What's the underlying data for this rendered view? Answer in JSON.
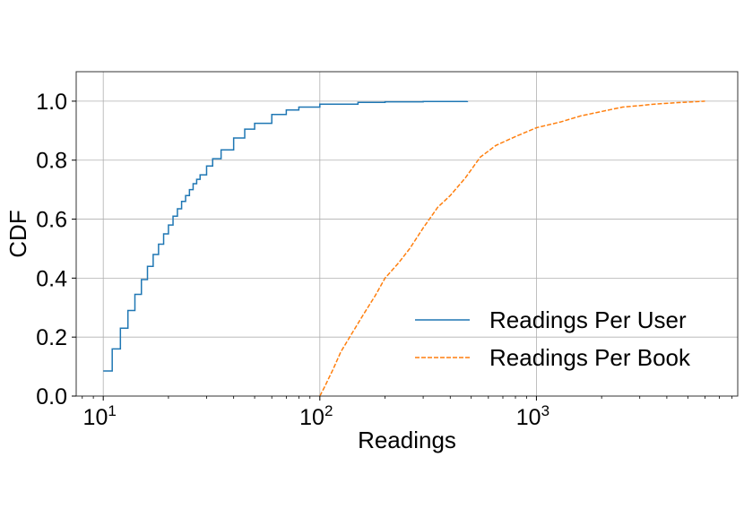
{
  "chart_data": {
    "type": "line",
    "title": "",
    "xlabel": "Readings",
    "ylabel": "CDF",
    "xscale": "log",
    "xlim": [
      7.5,
      8500
    ],
    "ylim": [
      0.0,
      1.1
    ],
    "x_ticks": [
      {
        "value": 10,
        "base": "10",
        "exp": "1"
      },
      {
        "value": 100,
        "base": "10",
        "exp": "2"
      },
      {
        "value": 1000,
        "base": "10",
        "exp": "3"
      }
    ],
    "y_ticks": [
      {
        "value": 0.0,
        "label": "0.0"
      },
      {
        "value": 0.2,
        "label": "0.2"
      },
      {
        "value": 0.4,
        "label": "0.4"
      },
      {
        "value": 0.6,
        "label": "0.6"
      },
      {
        "value": 0.8,
        "label": "0.8"
      },
      {
        "value": 1.0,
        "label": "1.0"
      }
    ],
    "grid": true,
    "legend_position": "bottom-right",
    "series": [
      {
        "name": "Readings Per User",
        "color": "#1f77b4",
        "style": "solid",
        "step": true,
        "x": [
          10,
          11,
          12,
          13,
          14,
          15,
          16,
          17,
          18,
          19,
          20,
          21,
          22,
          23,
          24,
          25,
          26,
          27,
          28,
          30,
          32,
          35,
          40,
          45,
          50,
          60,
          70,
          80,
          100,
          150,
          200,
          300,
          480
        ],
        "y": [
          0.085,
          0.16,
          0.23,
          0.29,
          0.345,
          0.395,
          0.44,
          0.48,
          0.515,
          0.55,
          0.58,
          0.61,
          0.635,
          0.66,
          0.68,
          0.7,
          0.72,
          0.735,
          0.75,
          0.78,
          0.805,
          0.835,
          0.875,
          0.905,
          0.925,
          0.955,
          0.97,
          0.98,
          0.99,
          0.996,
          0.998,
          0.999,
          1.0
        ]
      },
      {
        "name": "Readings Per Book",
        "color": "#ff7f0e",
        "style": "dashed",
        "step": false,
        "x": [
          100,
          105,
          115,
          125,
          140,
          160,
          180,
          200,
          230,
          260,
          300,
          350,
          400,
          470,
          550,
          650,
          800,
          1000,
          1300,
          1600,
          2000,
          2500,
          3000,
          3500,
          4500,
          6000
        ],
        "y": [
          0.0,
          0.03,
          0.09,
          0.15,
          0.21,
          0.28,
          0.34,
          0.4,
          0.45,
          0.5,
          0.57,
          0.64,
          0.68,
          0.74,
          0.81,
          0.85,
          0.88,
          0.91,
          0.93,
          0.95,
          0.965,
          0.98,
          0.985,
          0.99,
          0.995,
          1.0
        ]
      }
    ]
  }
}
